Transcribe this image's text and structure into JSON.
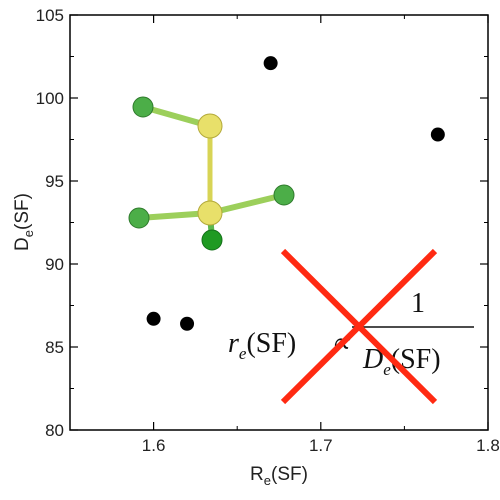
{
  "chart_data": {
    "type": "scatter",
    "xlabel": "R",
    "xlabel_sub": "e",
    "xlabel_rest": "(SF)",
    "ylabel": "D",
    "ylabel_sub": "e",
    "ylabel_rest": "(SF)",
    "xlim": [
      1.55,
      1.8
    ],
    "ylim": [
      80,
      105
    ],
    "xticks": [
      1.6,
      1.7,
      1.8
    ],
    "yticks": [
      80,
      85,
      90,
      95,
      100,
      105
    ],
    "xtick_labels": [
      "1.6",
      "1.7",
      "1.8"
    ],
    "ytick_labels": [
      "80",
      "85",
      "90",
      "95",
      "100",
      "105"
    ],
    "grid": false,
    "points": [
      {
        "x": 1.6,
        "y": 86.7
      },
      {
        "x": 1.62,
        "y": 86.4
      },
      {
        "x": 1.67,
        "y": 102.1
      },
      {
        "x": 1.77,
        "y": 97.8
      }
    ],
    "marker_color": "#000000",
    "annotation": {
      "lhs": "r",
      "lhs_sub": "e",
      "lhs_rest": "(SF)",
      "operator": "∝",
      "numerator": "1",
      "denominator": "D",
      "denominator_sub": "e",
      "denominator_rest": "(SF)",
      "cross_color": "#ff2a12"
    },
    "molecule": {
      "sulfur_color": "#e8e06a",
      "fluorine_color": "#4cae48"
    }
  }
}
